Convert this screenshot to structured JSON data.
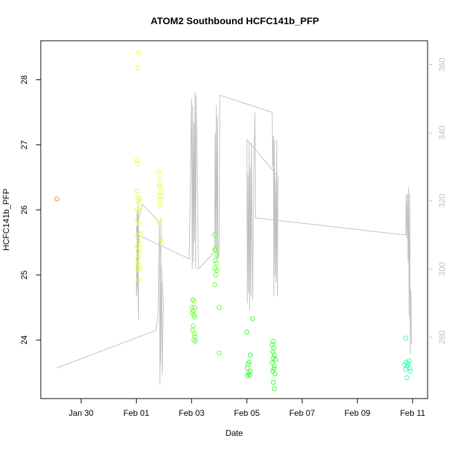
{
  "chart_data": {
    "type": "scatter",
    "title": "ATOM2 Southbound HCFC141b_PFP",
    "xlabel": "Date",
    "ylabel": "HCFC141b_PFP",
    "y2label": "",
    "x_ticks": [
      "Jan 30",
      "Feb 01",
      "Feb 03",
      "Feb 05",
      "Feb 07",
      "Feb 09",
      "Feb 11"
    ],
    "y_ticks": [
      24,
      25,
      26,
      27,
      28
    ],
    "y2_ticks": [
      280,
      300,
      320,
      340,
      360
    ],
    "xlim": [
      "2017-01-28T13:00",
      "2017-02-11T13:00"
    ],
    "ylim": [
      23.1,
      28.6
    ],
    "y2lim": [
      262,
      367
    ],
    "grid": false,
    "line_color": "#c0c0c0",
    "right_axis_color": "#c0c0c0",
    "series": [
      {
        "color": "#ff8800",
        "points": [
          [
            "2017-01-29T03:00",
            26.17
          ]
        ]
      },
      {
        "color": "#eaff3a",
        "points": [
          [
            "2017-02-01T02:00",
            28.42
          ],
          [
            "2017-02-01T01:30",
            28.18
          ],
          [
            "2017-02-01T00:30",
            26.76
          ],
          [
            "2017-02-01T01:00",
            26.71
          ],
          [
            "2017-02-01T01:00",
            26.29
          ],
          [
            "2017-02-01T01:30",
            26.19
          ],
          [
            "2017-02-01T03:00",
            26.17
          ],
          [
            "2017-02-01T02:00",
            26.13
          ],
          [
            "2017-02-01T00:30",
            26.0
          ],
          [
            "2017-02-01T03:00",
            26.02
          ],
          [
            "2017-02-01T01:00",
            25.85
          ],
          [
            "2017-02-01T02:30",
            25.78
          ],
          [
            "2017-02-01T04:00",
            25.63
          ],
          [
            "2017-02-01T01:00",
            25.6
          ],
          [
            "2017-02-01T02:00",
            25.5
          ],
          [
            "2017-02-01T00:30",
            25.45
          ],
          [
            "2017-02-01T03:00",
            25.41
          ],
          [
            "2017-02-01T01:30",
            25.36
          ],
          [
            "2017-02-01T02:30",
            25.3
          ],
          [
            "2017-02-01T01:00",
            25.25
          ],
          [
            "2017-02-01T02:00",
            25.18
          ],
          [
            "2017-02-01T01:00",
            25.09
          ],
          [
            "2017-02-01T03:00",
            25.1
          ],
          [
            "2017-02-01T02:00",
            24.92
          ],
          [
            "2017-02-01T19:30",
            26.59
          ],
          [
            "2017-02-01T20:30",
            26.47
          ],
          [
            "2017-02-01T20:00",
            26.38
          ],
          [
            "2017-02-01T21:00",
            26.36
          ],
          [
            "2017-02-01T21:30",
            26.28
          ],
          [
            "2017-02-01T19:00",
            26.22
          ],
          [
            "2017-02-01T22:00",
            26.22
          ],
          [
            "2017-02-01T20:30",
            26.15
          ],
          [
            "2017-02-01T21:00",
            26.08
          ],
          [
            "2017-02-01T19:30",
            25.81
          ],
          [
            "2017-02-01T21:30",
            25.55
          ],
          [
            "2017-02-01T22:00",
            25.48
          ]
        ]
      },
      {
        "color": "#66ff33",
        "points": [
          [
            "2017-02-03T01:00",
            24.62
          ],
          [
            "2017-02-03T02:00",
            24.6
          ],
          [
            "2017-02-03T00:30",
            24.5
          ],
          [
            "2017-02-03T03:00",
            24.5
          ],
          [
            "2017-02-03T01:30",
            24.45
          ],
          [
            "2017-02-03T00:30",
            24.42
          ],
          [
            "2017-02-03T02:00",
            24.38
          ],
          [
            "2017-02-03T03:00",
            24.35
          ],
          [
            "2017-02-03T01:30",
            24.22
          ],
          [
            "2017-02-03T01:00",
            24.15
          ],
          [
            "2017-02-03T02:30",
            24.1
          ],
          [
            "2017-02-03T03:00",
            24.05
          ],
          [
            "2017-02-03T02:00",
            24.0
          ],
          [
            "2017-02-03T03:30",
            23.98
          ],
          [
            "2017-02-03T20:00",
            25.62
          ],
          [
            "2017-02-03T21:00",
            25.4
          ],
          [
            "2017-02-03T20:00",
            25.38
          ],
          [
            "2017-02-03T22:00",
            25.3
          ],
          [
            "2017-02-03T20:30",
            25.22
          ],
          [
            "2017-02-03T21:30",
            25.18
          ],
          [
            "2017-02-03T20:30",
            25.1
          ],
          [
            "2017-02-03T22:00",
            25.07
          ],
          [
            "2017-02-03T21:00",
            25.0
          ],
          [
            "2017-02-03T20:00",
            24.85
          ],
          [
            "2017-02-04T00:00",
            24.5
          ],
          [
            "2017-02-04T00:00",
            23.8
          ]
        ]
      },
      {
        "color": "#33ff33",
        "points": [
          [
            "2017-02-05T00:00",
            24.12
          ],
          [
            "2017-02-05T05:00",
            24.33
          ],
          [
            "2017-02-05T03:00",
            23.77
          ],
          [
            "2017-02-05T02:00",
            23.66
          ],
          [
            "2017-02-05T01:00",
            23.63
          ],
          [
            "2017-02-05T00:30",
            23.57
          ],
          [
            "2017-02-05T03:00",
            23.52
          ],
          [
            "2017-02-05T01:30",
            23.49
          ],
          [
            "2017-02-05T02:30",
            23.46
          ],
          [
            "2017-02-05T00:30",
            23.45
          ],
          [
            "2017-02-05T23:00",
            23.98
          ],
          [
            "2017-02-05T22:00",
            23.93
          ],
          [
            "2017-02-05T23:30",
            23.88
          ],
          [
            "2017-02-05T22:30",
            23.82
          ],
          [
            "2017-02-06T00:00",
            23.77
          ],
          [
            "2017-02-05T23:00",
            23.72
          ],
          [
            "2017-02-06T01:00",
            23.7
          ],
          [
            "2017-02-05T22:00",
            23.65
          ],
          [
            "2017-02-06T00:00",
            23.6
          ],
          [
            "2017-02-05T23:30",
            23.56
          ],
          [
            "2017-02-05T22:30",
            23.52
          ],
          [
            "2017-02-06T00:30",
            23.48
          ],
          [
            "2017-02-05T23:00",
            23.35
          ],
          [
            "2017-02-06T00:00",
            23.25
          ]
        ]
      },
      {
        "color": "#33ffaa",
        "points": [
          [
            "2017-02-10T18:00",
            24.03
          ],
          [
            "2017-02-10T21:00",
            23.68
          ],
          [
            "2017-02-10T18:30",
            23.66
          ],
          [
            "2017-02-10T20:00",
            23.64
          ],
          [
            "2017-02-10T17:00",
            23.62
          ],
          [
            "2017-02-10T19:30",
            23.6
          ],
          [
            "2017-02-10T21:30",
            23.57
          ],
          [
            "2017-02-10T18:00",
            23.55
          ],
          [
            "2017-02-10T22:00",
            23.52
          ],
          [
            "2017-02-10T19:00",
            23.42
          ]
        ]
      }
    ],
    "line_series": {
      "axis": "right",
      "points": [
        [
          "2017-01-29T03:00",
          271
        ],
        [
          "2017-02-01T17:00",
          282
        ],
        [
          "2017-02-01T19:00",
          287
        ],
        [
          "2017-02-01T20:00",
          312
        ],
        [
          "2017-02-01T20:30",
          266
        ],
        [
          "2017-02-01T21:30",
          315
        ],
        [
          "2017-02-01T21:00",
          272
        ],
        [
          "2017-02-01T22:00",
          296
        ],
        [
          "2017-02-01T22:30",
          269
        ],
        [
          "2017-02-01T23:30",
          290
        ],
        [
          "2017-02-01T19:30",
          314
        ],
        [
          "2017-02-01T05:00",
          319
        ],
        [
          "2017-02-01T00:00",
          312
        ],
        [
          "2017-02-01T01:00",
          309
        ],
        [
          "2017-02-01T00:30",
          300
        ],
        [
          "2017-02-01T01:30",
          319
        ],
        [
          "2017-02-01T00:00",
          295
        ],
        [
          "2017-02-01T01:00",
          318
        ],
        [
          "2017-02-01T00:00",
          292
        ],
        [
          "2017-02-01T02:00",
          306
        ],
        [
          "2017-02-01T01:00",
          318
        ],
        [
          "2017-02-01T02:00",
          290
        ],
        [
          "2017-02-01T01:30",
          298
        ],
        [
          "2017-02-01T00:30",
          316
        ],
        [
          "2017-02-01T02:30",
          310
        ],
        [
          "2017-02-01T01:00",
          299
        ],
        [
          "2017-02-01T02:00",
          285
        ],
        [
          "2017-02-01T01:30",
          320
        ],
        [
          "2017-02-01T02:00",
          303
        ],
        [
          "2017-02-01T01:30",
          310
        ],
        [
          "2017-02-02T22:00",
          303
        ],
        [
          "2017-02-03T00:00",
          350
        ],
        [
          "2017-02-03T00:30",
          300
        ],
        [
          "2017-02-03T01:00",
          348
        ],
        [
          "2017-02-03T01:30",
          302
        ],
        [
          "2017-02-03T02:00",
          343
        ],
        [
          "2017-02-03T02:30",
          308
        ],
        [
          "2017-02-03T03:00",
          352
        ],
        [
          "2017-02-03T03:30",
          300
        ],
        [
          "2017-02-03T04:00",
          351
        ],
        [
          "2017-02-03T06:00",
          300
        ],
        [
          "2017-02-03T20:00",
          305
        ],
        [
          "2017-02-03T20:30",
          340
        ],
        [
          "2017-02-03T21:00",
          306
        ],
        [
          "2017-02-03T21:30",
          348
        ],
        [
          "2017-02-03T22:00",
          303
        ],
        [
          "2017-02-03T22:30",
          345
        ],
        [
          "2017-02-03T23:00",
          303
        ],
        [
          "2017-02-04T00:00",
          305
        ],
        [
          "2017-02-04T00:30",
          351
        ],
        [
          "2017-02-05T22:00",
          346
        ],
        [
          "2017-02-05T22:30",
          330
        ],
        [
          "2017-02-05T23:00",
          339
        ],
        [
          "2017-02-05T23:30",
          292
        ],
        [
          "2017-02-06T00:00",
          338
        ],
        [
          "2017-02-06T00:30",
          298
        ],
        [
          "2017-02-06T01:00",
          327
        ],
        [
          "2017-02-06T01:30",
          296
        ],
        [
          "2017-02-06T02:00",
          338
        ],
        [
          "2017-02-06T02:30",
          292
        ],
        [
          "2017-02-06T03:00",
          323
        ],
        [
          "2017-02-06T03:30",
          327
        ],
        [
          "2017-02-05T00:00",
          338
        ],
        [
          "2017-02-05T00:30",
          290
        ],
        [
          "2017-02-05T01:00",
          328
        ],
        [
          "2017-02-05T01:30",
          293
        ],
        [
          "2017-02-05T02:00",
          337
        ],
        [
          "2017-02-05T02:30",
          288
        ],
        [
          "2017-02-05T03:00",
          330
        ],
        [
          "2017-02-05T03:30",
          292
        ],
        [
          "2017-02-05T04:00",
          337
        ],
        [
          "2017-02-05T05:00",
          291
        ],
        [
          "2017-02-05T06:00",
          328
        ],
        [
          "2017-02-05T07:00",
          346
        ],
        [
          "2017-02-05T07:30",
          315
        ],
        [
          "2017-02-10T18:00",
          310
        ],
        [
          "2017-02-10T18:30",
          322
        ],
        [
          "2017-02-10T19:00",
          309
        ],
        [
          "2017-02-10T19:30",
          322
        ],
        [
          "2017-02-10T20:00",
          302
        ],
        [
          "2017-02-10T20:30",
          324
        ],
        [
          "2017-02-10T21:00",
          286
        ],
        [
          "2017-02-10T21:30",
          322
        ],
        [
          "2017-02-10T22:00",
          275
        ],
        [
          "2017-02-10T22:30",
          294
        ],
        [
          "2017-02-10T23:00",
          278
        ]
      ]
    }
  }
}
